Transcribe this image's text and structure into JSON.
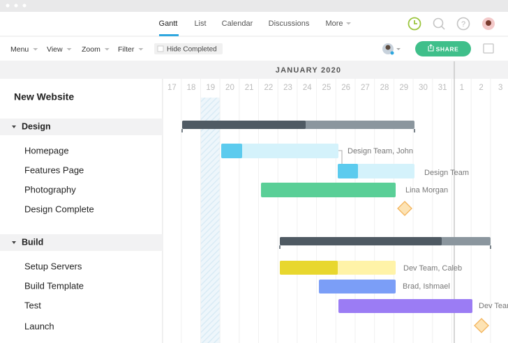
{
  "nav": {
    "tabs": [
      "Gantt",
      "List",
      "Calendar",
      "Discussions",
      "More"
    ]
  },
  "toolbar": {
    "menus": [
      "Menu",
      "View",
      "Zoom",
      "Filter"
    ],
    "hide_completed": "Hide Completed",
    "share": "SHARE"
  },
  "timeline": {
    "month": "JANUARY 2020",
    "days": [
      "17",
      "18",
      "19",
      "20",
      "21",
      "22",
      "23",
      "24",
      "25",
      "26",
      "27",
      "28",
      "29",
      "30",
      "31",
      "1",
      "2",
      "3"
    ]
  },
  "project": {
    "title": "New Website",
    "groups": [
      {
        "name": "Design",
        "tasks": [
          "Homepage",
          "Features Page",
          "Photography",
          "Design Complete"
        ]
      },
      {
        "name": "Build",
        "tasks": [
          "Setup Servers",
          "Build Template",
          "Test",
          "Launch"
        ]
      }
    ]
  },
  "assignees": [
    "Design Team, John",
    "Design Team",
    "Lina Morgan",
    "Dev Team, Caleb",
    "Brad, Ishmael",
    "Dev Team"
  ]
}
